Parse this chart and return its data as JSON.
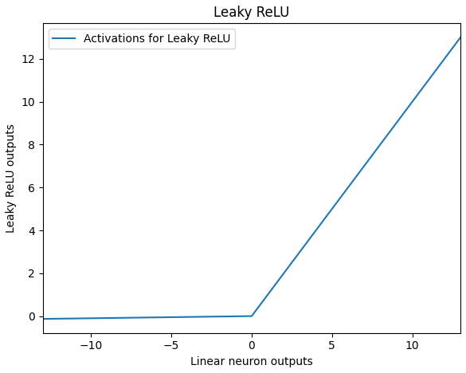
{
  "title": "Leaky ReLU",
  "xlabel": "Linear neuron outputs",
  "ylabel": "Leaky ReLU outputs",
  "legend_label": "Activations for Leaky ReLU",
  "line_color": "#1f77b4",
  "x_min": -13,
  "x_max": 13,
  "leaky_alpha": 0.01,
  "background_color": "#ffffff",
  "title_fontsize": 12,
  "label_fontsize": 10,
  "legend_fontsize": 10
}
